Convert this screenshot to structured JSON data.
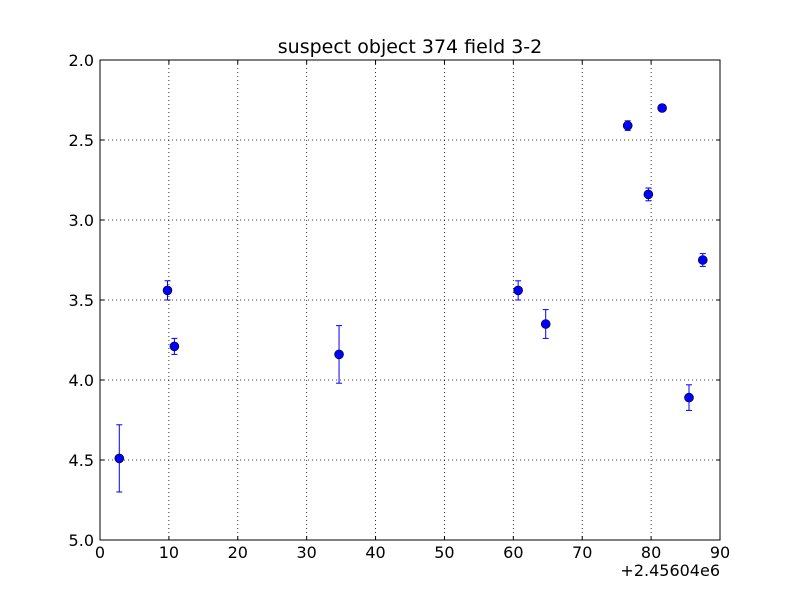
{
  "chart_data": {
    "type": "scatter",
    "title": "suspect object 374 field 3-2",
    "xlabel": "",
    "ylabel": "",
    "x_offset_label": "+2.45604e6",
    "xlim": [
      0,
      90
    ],
    "ylim": [
      5.0,
      2.0
    ],
    "y_inverted": true,
    "grid": true,
    "x_ticks": [
      0,
      10,
      20,
      30,
      40,
      50,
      60,
      70,
      80,
      90
    ],
    "x_tick_labels": [
      "0",
      "10",
      "20",
      "30",
      "40",
      "50",
      "60",
      "70",
      "80",
      "90"
    ],
    "y_ticks": [
      2.0,
      2.5,
      3.0,
      3.5,
      4.0,
      4.5,
      5.0
    ],
    "y_tick_labels": [
      "2.0",
      "2.5",
      "3.0",
      "3.5",
      "4.0",
      "4.5",
      "5.0"
    ],
    "marker_color": "#0000ff",
    "series": [
      {
        "points": [
          {
            "x": 2.8,
            "y": 4.49,
            "err": 0.21
          },
          {
            "x": 9.8,
            "y": 3.44,
            "err": 0.06
          },
          {
            "x": 10.8,
            "y": 3.79,
            "err": 0.05
          },
          {
            "x": 34.7,
            "y": 3.84,
            "err": 0.18
          },
          {
            "x": 60.7,
            "y": 3.44,
            "err": 0.06
          },
          {
            "x": 64.7,
            "y": 3.65,
            "err": 0.09
          },
          {
            "x": 76.6,
            "y": 2.41,
            "err": 0.03
          },
          {
            "x": 79.6,
            "y": 2.84,
            "err": 0.04
          },
          {
            "x": 81.6,
            "y": 2.3,
            "err": 0.02
          },
          {
            "x": 85.5,
            "y": 4.11,
            "err": 0.08
          },
          {
            "x": 87.5,
            "y": 3.25,
            "err": 0.04
          }
        ]
      }
    ]
  }
}
